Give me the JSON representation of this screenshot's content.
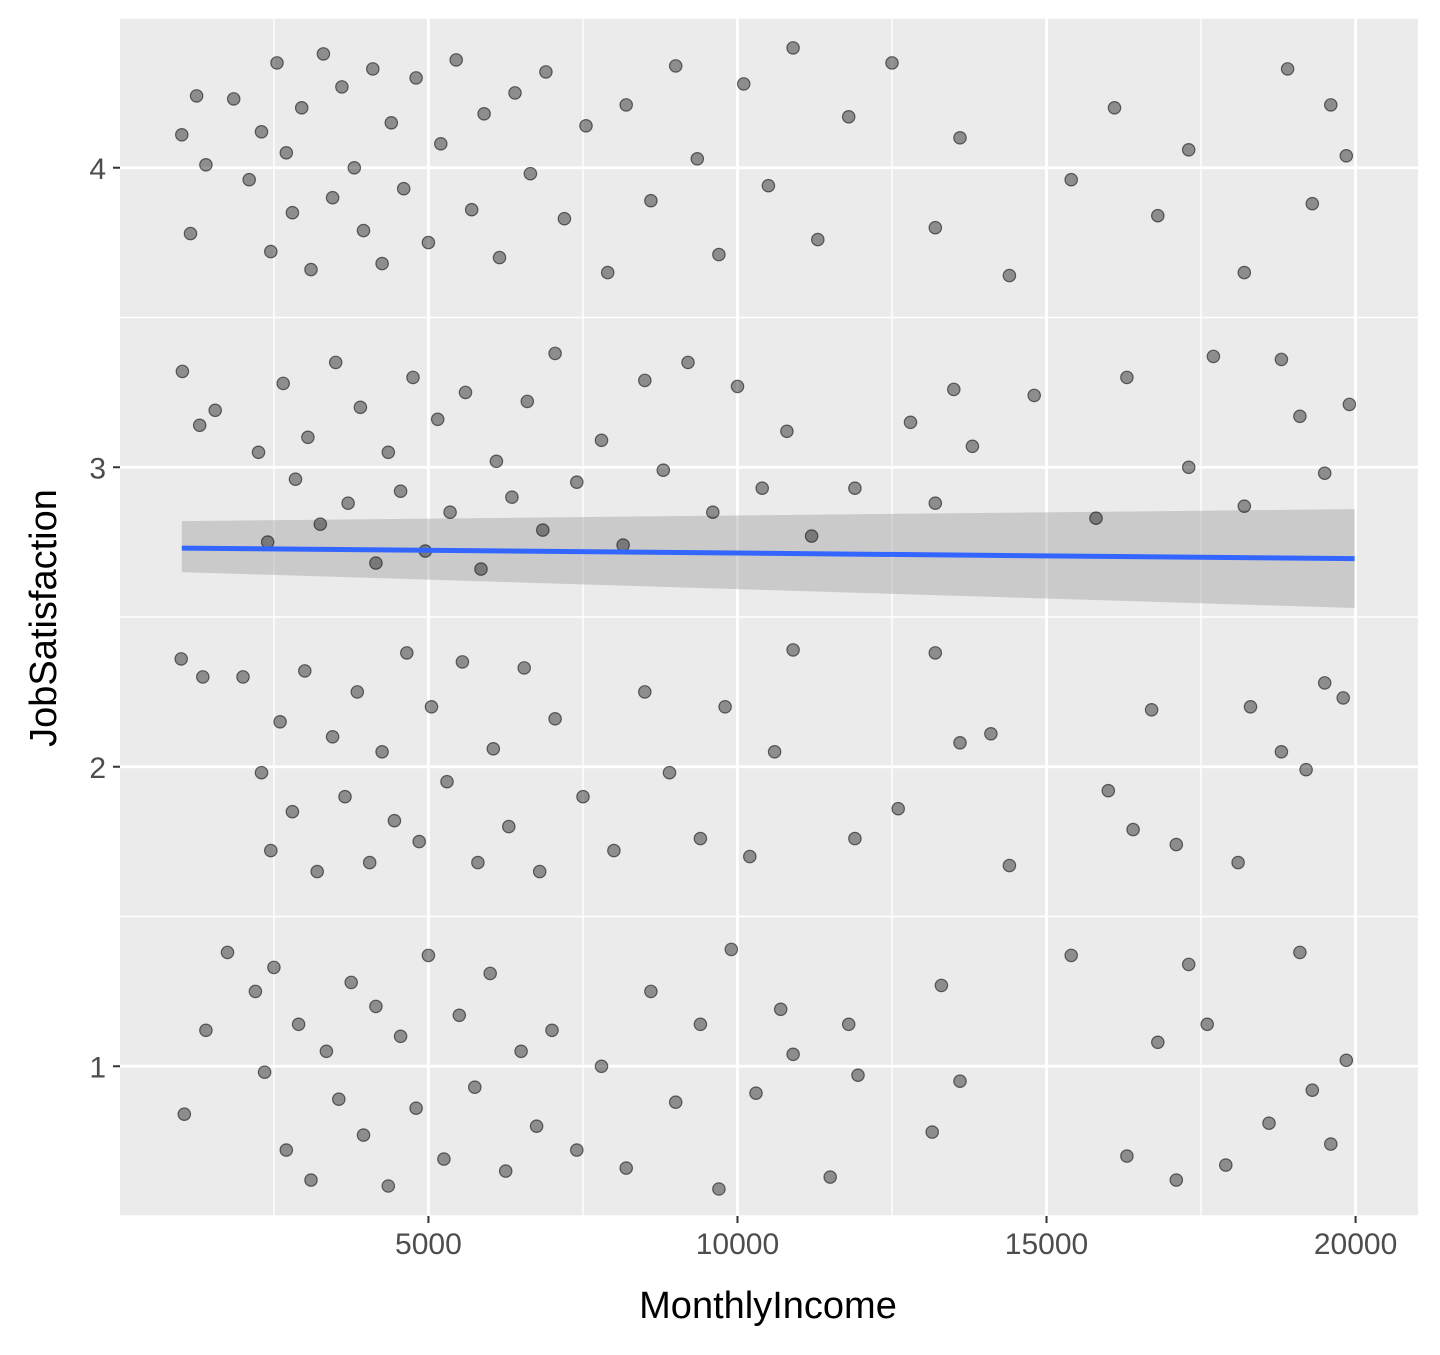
{
  "chart_data": {
    "type": "scatter",
    "title": "",
    "xlabel": "MonthlyIncome",
    "ylabel": "JobSatisfaction",
    "xlim": [
      10,
      21010
    ],
    "ylim": [
      0.5,
      4.5
    ],
    "x_ticks": [
      5000,
      10000,
      15000,
      20000
    ],
    "x_tick_labels": [
      "5000",
      "10000",
      "15000",
      "20000"
    ],
    "y_ticks": [
      1,
      2,
      3,
      4
    ],
    "y_tick_labels": [
      "1",
      "2",
      "3",
      "4"
    ],
    "grid": true,
    "jitter": true,
    "point_color": "#000000",
    "point_alpha": 0.4,
    "trend_color": "#3366FF",
    "ribbon_color": "#999999",
    "colors": {
      "panel": "#EBEBEB",
      "grid": "#FFFFFF",
      "background": "#FFFFFF"
    },
    "series": [
      {
        "points": [
          [
            1010,
            4.11
          ],
          [
            1150,
            3.78
          ],
          [
            1250,
            4.24
          ],
          [
            1400,
            4.01
          ],
          [
            1850,
            4.23
          ],
          [
            2100,
            3.96
          ],
          [
            2300,
            4.12
          ],
          [
            2450,
            3.72
          ],
          [
            2550,
            4.35
          ],
          [
            2700,
            4.05
          ],
          [
            2800,
            3.85
          ],
          [
            2950,
            4.2
          ],
          [
            3100,
            3.66
          ],
          [
            3300,
            4.38
          ],
          [
            3450,
            3.9
          ],
          [
            3600,
            4.27
          ],
          [
            3800,
            4.0
          ],
          [
            3950,
            3.79
          ],
          [
            4100,
            4.33
          ],
          [
            4250,
            3.68
          ],
          [
            4400,
            4.15
          ],
          [
            4600,
            3.93
          ],
          [
            4800,
            4.3
          ],
          [
            5000,
            3.75
          ],
          [
            5200,
            4.08
          ],
          [
            5450,
            4.36
          ],
          [
            5700,
            3.86
          ],
          [
            5900,
            4.18
          ],
          [
            6150,
            3.7
          ],
          [
            6400,
            4.25
          ],
          [
            6650,
            3.98
          ],
          [
            6900,
            4.32
          ],
          [
            7200,
            3.83
          ],
          [
            7550,
            4.14
          ],
          [
            7900,
            3.65
          ],
          [
            8200,
            4.21
          ],
          [
            8600,
            3.89
          ],
          [
            9000,
            4.34
          ],
          [
            9350,
            4.03
          ],
          [
            9700,
            3.71
          ],
          [
            10100,
            4.28
          ],
          [
            10500,
            3.94
          ],
          [
            10900,
            4.4
          ],
          [
            11300,
            3.76
          ],
          [
            11800,
            4.17
          ],
          [
            12500,
            4.35
          ],
          [
            13200,
            3.8
          ],
          [
            13600,
            4.1
          ],
          [
            14400,
            3.64
          ],
          [
            15400,
            3.96
          ],
          [
            16100,
            4.2
          ],
          [
            16800,
            3.84
          ],
          [
            17300,
            4.06
          ],
          [
            18200,
            3.65
          ],
          [
            18900,
            4.33
          ],
          [
            19300,
            3.88
          ],
          [
            19600,
            4.21
          ],
          [
            19850,
            4.04
          ],
          [
            1020,
            3.32
          ],
          [
            1300,
            3.14
          ],
          [
            1550,
            3.19
          ],
          [
            2250,
            3.05
          ],
          [
            2400,
            2.75
          ],
          [
            2650,
            3.28
          ],
          [
            2850,
            2.96
          ],
          [
            3050,
            3.1
          ],
          [
            3250,
            2.81
          ],
          [
            3500,
            3.35
          ],
          [
            3700,
            2.88
          ],
          [
            3900,
            3.2
          ],
          [
            4150,
            2.68
          ],
          [
            4350,
            3.05
          ],
          [
            4550,
            2.92
          ],
          [
            4750,
            3.3
          ],
          [
            4950,
            2.72
          ],
          [
            5150,
            3.16
          ],
          [
            5350,
            2.85
          ],
          [
            5600,
            3.25
          ],
          [
            5850,
            2.66
          ],
          [
            6100,
            3.02
          ],
          [
            6350,
            2.9
          ],
          [
            6600,
            3.22
          ],
          [
            6850,
            2.79
          ],
          [
            7050,
            3.38
          ],
          [
            7400,
            2.95
          ],
          [
            7800,
            3.09
          ],
          [
            8150,
            2.74
          ],
          [
            8500,
            3.29
          ],
          [
            8800,
            2.99
          ],
          [
            9200,
            3.35
          ],
          [
            9600,
            2.85
          ],
          [
            10000,
            3.27
          ],
          [
            10400,
            2.93
          ],
          [
            10800,
            3.12
          ],
          [
            11200,
            2.77
          ],
          [
            11900,
            2.93
          ],
          [
            12800,
            3.15
          ],
          [
            13200,
            2.88
          ],
          [
            13500,
            3.26
          ],
          [
            13800,
            3.07
          ],
          [
            14800,
            3.24
          ],
          [
            15800,
            2.83
          ],
          [
            16300,
            3.3
          ],
          [
            17300,
            3.0
          ],
          [
            17700,
            3.37
          ],
          [
            18200,
            2.87
          ],
          [
            18800,
            3.36
          ],
          [
            19100,
            3.17
          ],
          [
            19500,
            2.98
          ],
          [
            19900,
            3.21
          ],
          [
            1000,
            2.36
          ],
          [
            1350,
            2.3
          ],
          [
            2000,
            2.3
          ],
          [
            2300,
            1.98
          ],
          [
            2450,
            1.72
          ],
          [
            2600,
            2.15
          ],
          [
            2800,
            1.85
          ],
          [
            3000,
            2.32
          ],
          [
            3200,
            1.65
          ],
          [
            3450,
            2.1
          ],
          [
            3650,
            1.9
          ],
          [
            3850,
            2.25
          ],
          [
            4050,
            1.68
          ],
          [
            4250,
            2.05
          ],
          [
            4450,
            1.82
          ],
          [
            4650,
            2.38
          ],
          [
            4850,
            1.75
          ],
          [
            5050,
            2.2
          ],
          [
            5300,
            1.95
          ],
          [
            5550,
            2.35
          ],
          [
            5800,
            1.68
          ],
          [
            6050,
            2.06
          ],
          [
            6300,
            1.8
          ],
          [
            6550,
            2.33
          ],
          [
            6800,
            1.65
          ],
          [
            7050,
            2.16
          ],
          [
            7500,
            1.9
          ],
          [
            8000,
            1.72
          ],
          [
            8500,
            2.25
          ],
          [
            8900,
            1.98
          ],
          [
            9400,
            1.76
          ],
          [
            9800,
            2.2
          ],
          [
            10200,
            1.7
          ],
          [
            10600,
            2.05
          ],
          [
            10900,
            2.39
          ],
          [
            11900,
            1.76
          ],
          [
            12600,
            1.86
          ],
          [
            13200,
            2.38
          ],
          [
            13600,
            2.08
          ],
          [
            14100,
            2.11
          ],
          [
            14400,
            1.67
          ],
          [
            16000,
            1.92
          ],
          [
            16400,
            1.79
          ],
          [
            16700,
            2.19
          ],
          [
            17100,
            1.74
          ],
          [
            18100,
            1.68
          ],
          [
            18300,
            2.2
          ],
          [
            18800,
            2.05
          ],
          [
            19200,
            1.99
          ],
          [
            19500,
            2.28
          ],
          [
            19800,
            2.23
          ],
          [
            1050,
            0.84
          ],
          [
            1400,
            1.12
          ],
          [
            1750,
            1.38
          ],
          [
            2200,
            1.25
          ],
          [
            2350,
            0.98
          ],
          [
            2500,
            1.33
          ],
          [
            2700,
            0.72
          ],
          [
            2900,
            1.14
          ],
          [
            3100,
            0.62
          ],
          [
            3350,
            1.05
          ],
          [
            3550,
            0.89
          ],
          [
            3750,
            1.28
          ],
          [
            3950,
            0.77
          ],
          [
            4150,
            1.2
          ],
          [
            4350,
            0.6
          ],
          [
            4550,
            1.1
          ],
          [
            4800,
            0.86
          ],
          [
            5000,
            1.37
          ],
          [
            5250,
            0.69
          ],
          [
            5500,
            1.17
          ],
          [
            5750,
            0.93
          ],
          [
            6000,
            1.31
          ],
          [
            6250,
            0.65
          ],
          [
            6500,
            1.05
          ],
          [
            6750,
            0.8
          ],
          [
            7000,
            1.12
          ],
          [
            7400,
            0.72
          ],
          [
            7800,
            1.0
          ],
          [
            8200,
            0.66
          ],
          [
            8600,
            1.25
          ],
          [
            9000,
            0.88
          ],
          [
            9400,
            1.14
          ],
          [
            9700,
            0.59
          ],
          [
            9900,
            1.39
          ],
          [
            10300,
            0.91
          ],
          [
            10700,
            1.19
          ],
          [
            10900,
            1.04
          ],
          [
            11500,
            0.63
          ],
          [
            11800,
            1.14
          ],
          [
            11950,
            0.97
          ],
          [
            13150,
            0.78
          ],
          [
            13300,
            1.27
          ],
          [
            13600,
            0.95
          ],
          [
            15400,
            1.37
          ],
          [
            16300,
            0.7
          ],
          [
            16800,
            1.08
          ],
          [
            17100,
            0.62
          ],
          [
            17300,
            1.34
          ],
          [
            17600,
            1.14
          ],
          [
            17900,
            0.67
          ],
          [
            18600,
            0.81
          ],
          [
            19100,
            1.38
          ],
          [
            19300,
            0.92
          ],
          [
            19600,
            0.74
          ],
          [
            19850,
            1.02
          ]
        ]
      }
    ],
    "trend": {
      "x": [
        1010,
        19985
      ],
      "y": [
        2.73,
        2.695
      ],
      "ymin": [
        2.65,
        2.53
      ],
      "ymax": [
        2.82,
        2.86
      ]
    }
  }
}
